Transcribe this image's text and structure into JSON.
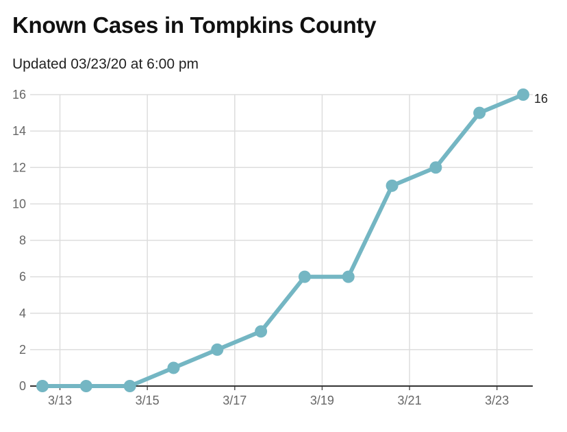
{
  "chart_data": {
    "type": "line",
    "title": "Known Cases in Tompkins County",
    "subtitle": "Updated 03/23/20 at 6:00 pm",
    "xlabel": "",
    "ylabel": "",
    "x": [
      "3/12",
      "3/13",
      "3/14",
      "3/15",
      "3/16",
      "3/17",
      "3/18",
      "3/19",
      "3/20",
      "3/21",
      "3/22",
      "3/23"
    ],
    "x_ticks": [
      "3/13",
      "3/15",
      "3/17",
      "3/19",
      "3/21",
      "3/23"
    ],
    "y_ticks": [
      0,
      2,
      4,
      6,
      8,
      10,
      12,
      14,
      16
    ],
    "ylim": [
      0,
      16
    ],
    "series": [
      {
        "values": [
          0,
          0,
          0,
          1,
          2,
          3,
          6,
          6,
          11,
          12,
          15,
          16
        ]
      }
    ],
    "end_label": "16",
    "grid": true,
    "line_color": "#74b6c3",
    "grid_color": "#dddddd",
    "axis_color": "#333333"
  }
}
